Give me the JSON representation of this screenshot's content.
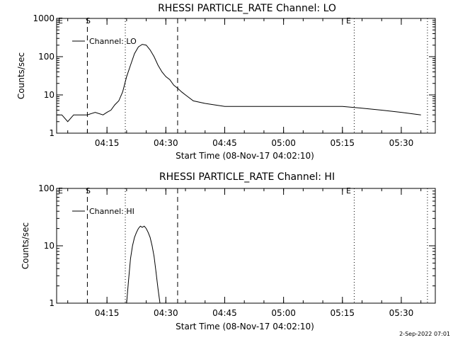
{
  "chart_data": [
    {
      "type": "line",
      "title": "RHESSI PARTICLE_RATE Channel: LO",
      "xlabel": "Start Time (08-Nov-17 04:02:10)",
      "ylabel": "Counts/sec",
      "yscale": "log",
      "ylim": [
        1,
        1000
      ],
      "xlim": [
        "04:02:10",
        "05:38:40"
      ],
      "x_ticks": [
        "04:15",
        "04:30",
        "04:45",
        "05:00",
        "05:15",
        "05:30"
      ],
      "y_ticks": [
        "1",
        "10",
        "100",
        "1000"
      ],
      "legend": "top-left",
      "series": [
        {
          "name": "Channel: LO",
          "x": [
            "04:02:10",
            "04:03:30",
            "04:05:00",
            "04:06:30",
            "04:08:00",
            "04:10:00",
            "04:12:00",
            "04:14:00",
            "04:15:00",
            "04:16:00",
            "04:17:00",
            "04:18:00",
            "04:19:00",
            "04:20:00",
            "04:21:00",
            "04:22:00",
            "04:23:00",
            "04:24:00",
            "04:25:00",
            "04:26:00",
            "04:27:00",
            "04:28:00",
            "04:29:00",
            "04:30:00",
            "04:31:00",
            "04:32:00",
            "04:33:00",
            "04:34:00",
            "04:35:00",
            "04:37:00",
            "04:40:00",
            "04:45:00",
            "04:50:00",
            "04:55:00",
            "05:00:00",
            "05:05:00",
            "05:10:00",
            "05:15:00",
            "05:20:00",
            "05:25:00",
            "05:30:00",
            "05:35:00"
          ],
          "values": [
            3.0,
            3.0,
            2.0,
            3.0,
            3.0,
            3.0,
            3.5,
            3.0,
            3.5,
            4.0,
            5.5,
            7.0,
            12,
            30,
            60,
            120,
            180,
            210,
            200,
            150,
            100,
            60,
            40,
            30,
            25,
            18,
            15,
            12,
            10,
            7,
            6,
            5,
            5,
            5,
            5,
            5,
            5,
            5,
            4.5,
            4,
            3.5,
            3.0
          ],
          "color": "#000000"
        }
      ],
      "markers": [
        {
          "label": "S",
          "time": "04:10:00",
          "style": "dashed"
        },
        {
          "label": "E",
          "time": "05:18:00",
          "style": "dotted"
        }
      ],
      "annotations": [
        "E",
        "S",
        "E"
      ]
    },
    {
      "type": "line",
      "title": "RHESSI PARTICLE_RATE Channel: HI",
      "xlabel": "Start Time (08-Nov-17 04:02:10)",
      "ylabel": "Counts/sec",
      "yscale": "log",
      "ylim": [
        1,
        100
      ],
      "xlim": [
        "04:02:10",
        "05:38:40"
      ],
      "x_ticks": [
        "04:15",
        "04:30",
        "04:45",
        "05:00",
        "05:15",
        "05:30"
      ],
      "y_ticks": [
        "1",
        "10",
        "100"
      ],
      "legend": "top-left",
      "series": [
        {
          "name": "Channel: HI",
          "x": [
            "04:20:00",
            "04:20:30",
            "04:21:00",
            "04:21:30",
            "04:22:00",
            "04:22:30",
            "04:23:00",
            "04:23:30",
            "04:24:00",
            "04:24:30",
            "04:25:00",
            "04:25:30",
            "04:26:00",
            "04:26:30",
            "04:27:00",
            "04:27:30",
            "04:28:00",
            "04:28:30"
          ],
          "values": [
            1.0,
            2.5,
            6.0,
            10,
            14,
            17,
            20,
            22,
            21,
            22,
            20,
            17,
            14,
            10,
            6.5,
            3.5,
            1.8,
            1.0
          ],
          "color": "#000000"
        }
      ],
      "annotations": [
        "E",
        "S",
        "E"
      ]
    }
  ],
  "footer": {
    "timestamp": "2-Sep-2022 07:01"
  }
}
